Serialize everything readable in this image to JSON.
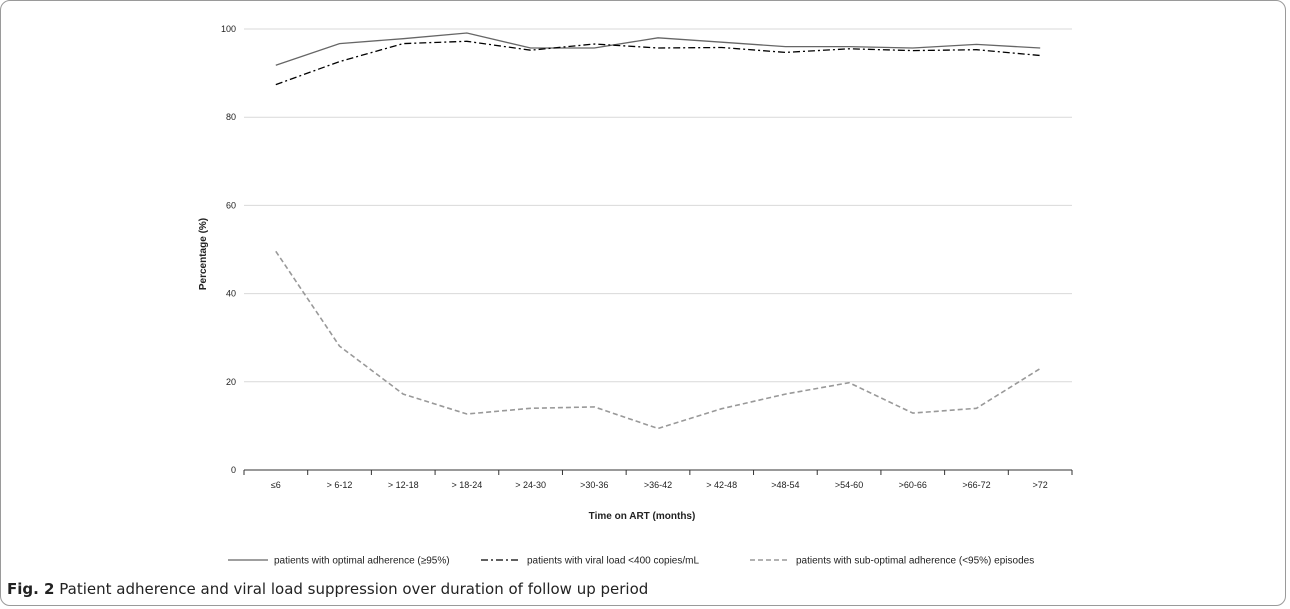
{
  "caption": {
    "label": "Fig. 2",
    "text": "Patient adherence and viral load suppression over duration of follow up period"
  },
  "chart_data": {
    "type": "line",
    "xlabel": "Time on ART (months)",
    "ylabel": "Percentage (%)",
    "ylim": [
      0,
      100
    ],
    "yticks": [
      0,
      20,
      40,
      60,
      80,
      100
    ],
    "grid": true,
    "legend_position": "bottom",
    "categories": [
      "≤6",
      "> 6-12",
      "> 12-18",
      "> 18-24",
      "> 24-30",
      ">30-36",
      ">36-42",
      "> 42-48",
      ">48-54",
      ">54-60",
      ">60-66",
      ">66-72",
      ">72"
    ],
    "series": [
      {
        "name": "patients with optimal adherence (≥95%)",
        "style": "solid",
        "color": "#666666",
        "values": [
          91.8,
          96.7,
          97.8,
          99.1,
          95.7,
          95.7,
          98.0,
          97.0,
          96.0,
          96.0,
          95.7,
          96.5,
          95.7
        ]
      },
      {
        "name": "patients with viral load <400 copies/mL",
        "style": "dash-dot",
        "color": "#000000",
        "values": [
          87.4,
          92.6,
          96.7,
          97.2,
          95.2,
          96.6,
          95.7,
          95.8,
          94.7,
          95.5,
          95.1,
          95.3,
          94.0
        ]
      },
      {
        "name": "patients with sub-optimal adherence (<95%) episodes",
        "style": "dashed",
        "color": "#999999",
        "values": [
          49.6,
          28.1,
          17.2,
          12.7,
          14.0,
          14.3,
          9.4,
          13.9,
          17.2,
          19.8,
          12.9,
          14.0,
          23.0
        ]
      }
    ]
  }
}
